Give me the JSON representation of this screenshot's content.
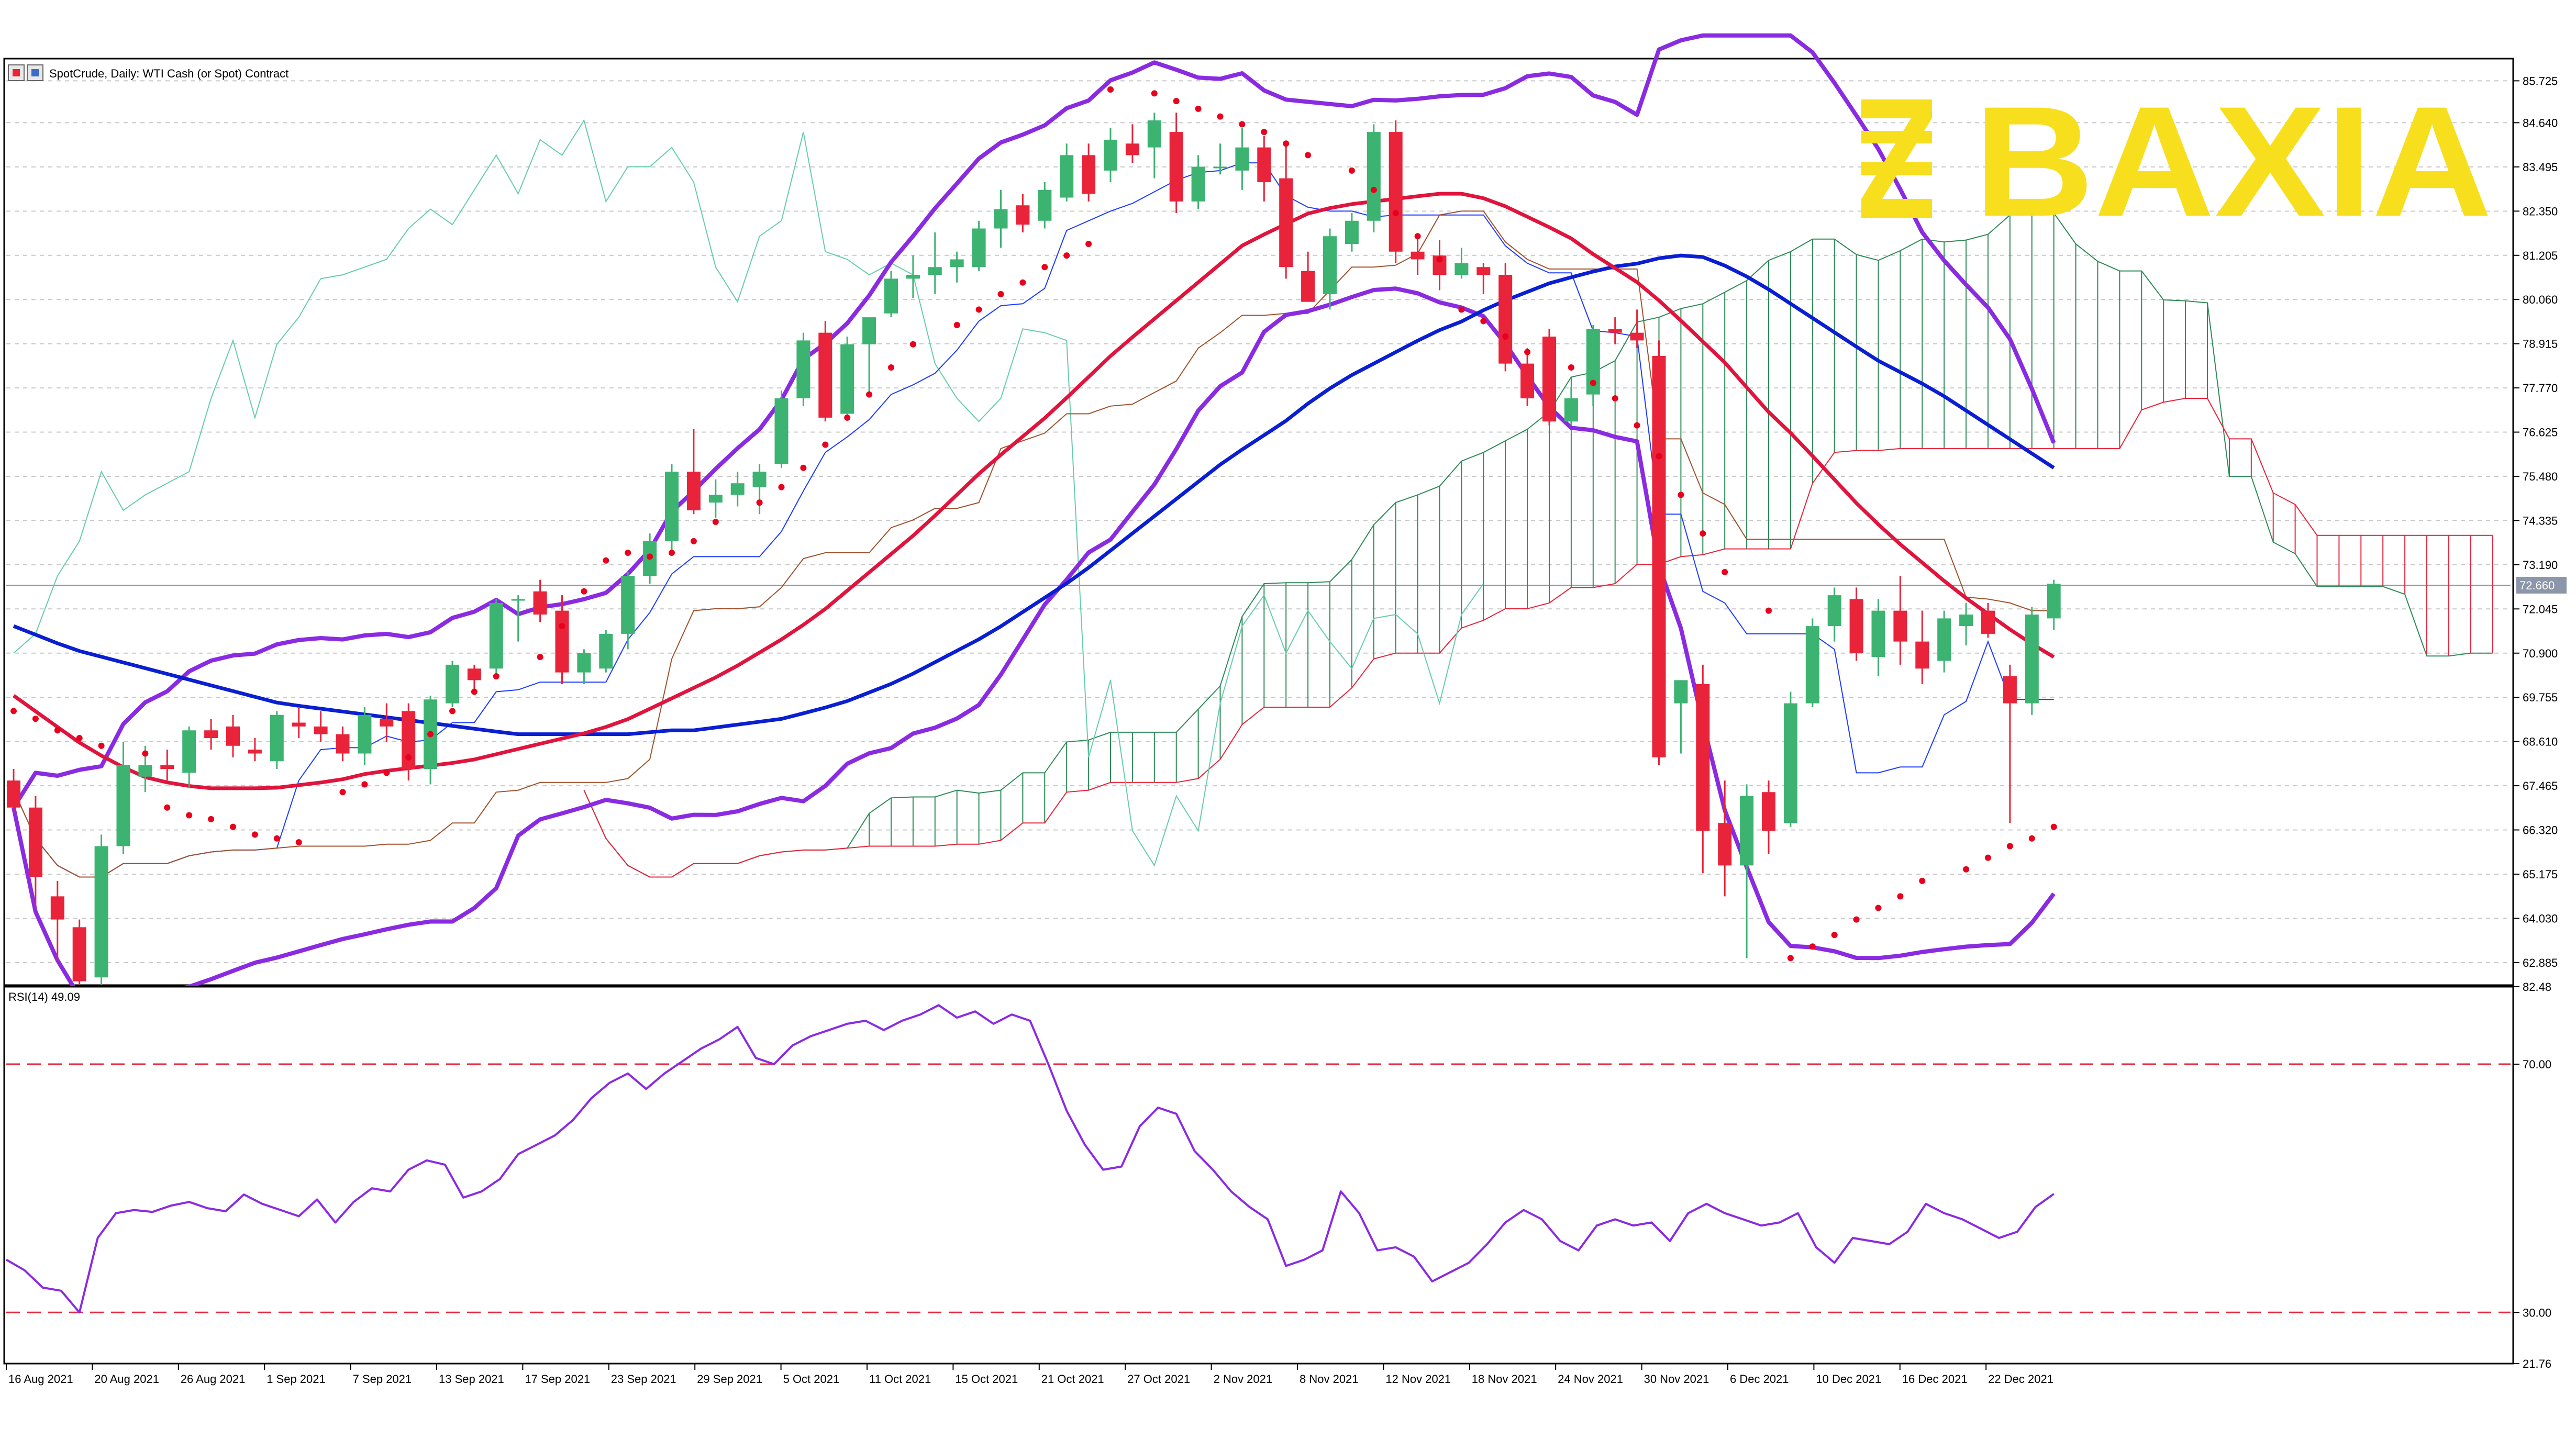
{
  "header": {
    "symbol_line": "SpotCrude, Daily:  WTI Cash (or Spot) Contract"
  },
  "logo": {
    "text": "BAXIA",
    "color": "#f7df1e"
  },
  "colors": {
    "bull": "#3cb371",
    "bear": "#e8233a",
    "sma_short": "#e0143c",
    "sma_long": "#0a1ed2",
    "bollinger": "#8a2be2",
    "ichimoku_tenkan": "#1e3cff",
    "ichimoku_kijun": "#a0522d",
    "chikou": "#66cdaa",
    "cloud_bull": "#2e8b57",
    "cloud_bear": "#e8233a",
    "psar": "#e8001c",
    "rsi": "#8a2be2",
    "rsi_level": "#e8233a",
    "grid": "#c8c8c8"
  },
  "chart_data": [
    {
      "type": "candlestick",
      "title": "SpotCrude, Daily:  WTI Cash (or Spot) Contract",
      "x_tick_labels": [
        "16 Aug 2021",
        "20 Aug 2021",
        "26 Aug 2021",
        "1 Sep 2021",
        "7 Sep 2021",
        "13 Sep 2021",
        "17 Sep 2021",
        "23 Sep 2021",
        "29 Sep 2021",
        "5 Oct 2021",
        "11 Oct 2021",
        "15 Oct 2021",
        "21 Oct 2021",
        "27 Oct 2021",
        "2 Nov 2021",
        "8 Nov 2021",
        "12 Nov 2021",
        "18 Nov 2021",
        "24 Nov 2021",
        "30 Nov 2021",
        "6 Dec 2021",
        "10 Dec 2021",
        "16 Dec 2021",
        "22 Dec 2021"
      ],
      "y_tick_labels": [
        "85.725",
        "84.640",
        "83.495",
        "82.350",
        "81.205",
        "80.060",
        "78.915",
        "77.770",
        "76.625",
        "75.480",
        "74.335",
        "73.190",
        "72.045",
        "70.900",
        "69.755",
        "68.610",
        "67.465",
        "66.320",
        "65.175",
        "64.030",
        "62.885"
      ],
      "current_price_label": "72.660",
      "ylim": [
        62.3,
        86.3
      ],
      "grid": true,
      "candles": [
        {
          "o": 67.6,
          "h": 67.9,
          "l": 66.8,
          "c": 66.9
        },
        {
          "o": 66.9,
          "h": 67.2,
          "l": 64.3,
          "c": 65.1
        },
        {
          "o": 64.6,
          "h": 65.0,
          "l": 62.9,
          "c": 64.0
        },
        {
          "o": 63.8,
          "h": 64.0,
          "l": 62.3,
          "c": 62.4
        },
        {
          "o": 62.5,
          "h": 66.2,
          "l": 62.3,
          "c": 65.9
        },
        {
          "o": 65.9,
          "h": 68.6,
          "l": 65.7,
          "c": 68.0
        },
        {
          "o": 67.7,
          "h": 68.5,
          "l": 67.3,
          "c": 68.0
        },
        {
          "o": 68.0,
          "h": 68.4,
          "l": 67.6,
          "c": 67.9
        },
        {
          "o": 67.8,
          "h": 69.0,
          "l": 67.4,
          "c": 68.9
        },
        {
          "o": 68.9,
          "h": 69.2,
          "l": 68.4,
          "c": 68.7
        },
        {
          "o": 69.0,
          "h": 69.3,
          "l": 68.2,
          "c": 68.5
        },
        {
          "o": 68.4,
          "h": 68.7,
          "l": 68.1,
          "c": 68.3
        },
        {
          "o": 68.1,
          "h": 69.4,
          "l": 67.9,
          "c": 69.3
        },
        {
          "o": 69.1,
          "h": 69.5,
          "l": 68.7,
          "c": 69.0
        },
        {
          "o": 69.0,
          "h": 69.4,
          "l": 68.6,
          "c": 68.8
        },
        {
          "o": 68.8,
          "h": 69.0,
          "l": 68.1,
          "c": 68.3
        },
        {
          "o": 68.3,
          "h": 69.5,
          "l": 68.0,
          "c": 69.3
        },
        {
          "o": 69.2,
          "h": 69.6,
          "l": 68.6,
          "c": 69.0
        },
        {
          "o": 69.4,
          "h": 69.6,
          "l": 67.6,
          "c": 67.9
        },
        {
          "o": 67.9,
          "h": 69.8,
          "l": 67.5,
          "c": 69.7
        },
        {
          "o": 69.6,
          "h": 70.7,
          "l": 69.5,
          "c": 70.6
        },
        {
          "o": 70.5,
          "h": 70.6,
          "l": 69.9,
          "c": 70.2
        },
        {
          "o": 70.5,
          "h": 72.3,
          "l": 70.3,
          "c": 72.2
        },
        {
          "o": 72.3,
          "h": 72.4,
          "l": 71.2,
          "c": 72.3
        },
        {
          "o": 72.5,
          "h": 72.8,
          "l": 71.7,
          "c": 71.9
        },
        {
          "o": 72.0,
          "h": 72.4,
          "l": 70.1,
          "c": 70.4
        },
        {
          "o": 70.4,
          "h": 71.0,
          "l": 70.1,
          "c": 70.9
        },
        {
          "o": 70.5,
          "h": 71.5,
          "l": 70.4,
          "c": 71.4
        },
        {
          "o": 71.4,
          "h": 73.0,
          "l": 71.0,
          "c": 72.9
        },
        {
          "o": 72.9,
          "h": 74.0,
          "l": 72.7,
          "c": 73.8
        },
        {
          "o": 73.8,
          "h": 75.8,
          "l": 73.5,
          "c": 75.6
        },
        {
          "o": 75.6,
          "h": 76.7,
          "l": 74.5,
          "c": 74.6
        },
        {
          "o": 74.8,
          "h": 75.4,
          "l": 74.4,
          "c": 75.0
        },
        {
          "o": 75.0,
          "h": 75.6,
          "l": 74.7,
          "c": 75.3
        },
        {
          "o": 75.2,
          "h": 75.8,
          "l": 74.5,
          "c": 75.6
        },
        {
          "o": 75.8,
          "h": 77.7,
          "l": 75.7,
          "c": 77.5
        },
        {
          "o": 77.5,
          "h": 79.2,
          "l": 77.3,
          "c": 79.0
        },
        {
          "o": 79.2,
          "h": 79.5,
          "l": 76.9,
          "c": 77.0
        },
        {
          "o": 77.1,
          "h": 79.1,
          "l": 77.0,
          "c": 78.9
        },
        {
          "o": 78.9,
          "h": 79.4,
          "l": 77.6,
          "c": 79.6
        },
        {
          "o": 79.7,
          "h": 80.8,
          "l": 79.6,
          "c": 80.6
        },
        {
          "o": 80.6,
          "h": 81.2,
          "l": 80.1,
          "c": 80.7
        },
        {
          "o": 80.7,
          "h": 81.8,
          "l": 80.2,
          "c": 80.9
        },
        {
          "o": 80.9,
          "h": 81.3,
          "l": 80.5,
          "c": 81.1
        },
        {
          "o": 80.9,
          "h": 82.1,
          "l": 80.8,
          "c": 81.9
        },
        {
          "o": 81.9,
          "h": 82.9,
          "l": 81.4,
          "c": 82.4
        },
        {
          "o": 82.5,
          "h": 82.8,
          "l": 81.8,
          "c": 82.0
        },
        {
          "o": 82.1,
          "h": 83.1,
          "l": 81.9,
          "c": 82.9
        },
        {
          "o": 82.7,
          "h": 84.1,
          "l": 82.6,
          "c": 83.8
        },
        {
          "o": 83.8,
          "h": 84.1,
          "l": 82.6,
          "c": 82.8
        },
        {
          "o": 83.4,
          "h": 84.5,
          "l": 83.1,
          "c": 84.2
        },
        {
          "o": 84.1,
          "h": 84.6,
          "l": 83.6,
          "c": 83.8
        },
        {
          "o": 84.0,
          "h": 84.9,
          "l": 83.2,
          "c": 84.7
        },
        {
          "o": 84.4,
          "h": 84.9,
          "l": 82.3,
          "c": 82.6
        },
        {
          "o": 82.6,
          "h": 83.8,
          "l": 82.4,
          "c": 83.5
        },
        {
          "o": 83.5,
          "h": 84.1,
          "l": 83.3,
          "c": 83.5
        },
        {
          "o": 83.4,
          "h": 84.5,
          "l": 82.9,
          "c": 84.0
        },
        {
          "o": 84.0,
          "h": 84.3,
          "l": 82.6,
          "c": 83.1
        },
        {
          "o": 83.2,
          "h": 84.1,
          "l": 80.6,
          "c": 80.9
        },
        {
          "o": 80.8,
          "h": 81.3,
          "l": 80.0,
          "c": 80.0
        },
        {
          "o": 80.2,
          "h": 81.9,
          "l": 79.8,
          "c": 81.7
        },
        {
          "o": 81.5,
          "h": 82.3,
          "l": 81.3,
          "c": 82.1
        },
        {
          "o": 82.1,
          "h": 84.6,
          "l": 81.8,
          "c": 84.4
        },
        {
          "o": 84.4,
          "h": 84.7,
          "l": 81.0,
          "c": 81.3
        },
        {
          "o": 81.3,
          "h": 81.7,
          "l": 80.7,
          "c": 81.1
        },
        {
          "o": 81.2,
          "h": 81.6,
          "l": 80.3,
          "c": 80.7
        },
        {
          "o": 80.7,
          "h": 81.4,
          "l": 80.6,
          "c": 81.0
        },
        {
          "o": 80.9,
          "h": 81.0,
          "l": 80.2,
          "c": 80.7
        },
        {
          "o": 80.7,
          "h": 81.0,
          "l": 78.2,
          "c": 78.4
        },
        {
          "o": 78.4,
          "h": 78.8,
          "l": 77.3,
          "c": 77.5
        },
        {
          "o": 79.1,
          "h": 79.3,
          "l": 76.8,
          "c": 76.9
        },
        {
          "o": 76.9,
          "h": 77.8,
          "l": 76.8,
          "c": 77.5
        },
        {
          "o": 77.6,
          "h": 79.4,
          "l": 77.3,
          "c": 79.3
        },
        {
          "o": 79.3,
          "h": 79.6,
          "l": 78.9,
          "c": 79.2
        },
        {
          "o": 79.2,
          "h": 79.8,
          "l": 78.8,
          "c": 79.0
        },
        {
          "o": 78.6,
          "h": 79.0,
          "l": 68.0,
          "c": 68.2
        },
        {
          "o": 69.6,
          "h": 70.2,
          "l": 68.3,
          "c": 70.2
        },
        {
          "o": 70.1,
          "h": 70.6,
          "l": 65.2,
          "c": 66.3
        },
        {
          "o": 66.5,
          "h": 67.6,
          "l": 64.6,
          "c": 65.4
        },
        {
          "o": 65.4,
          "h": 67.5,
          "l": 63.0,
          "c": 67.2
        },
        {
          "o": 67.3,
          "h": 67.6,
          "l": 65.7,
          "c": 66.3
        },
        {
          "o": 66.5,
          "h": 69.9,
          "l": 66.4,
          "c": 69.6
        },
        {
          "o": 69.6,
          "h": 71.8,
          "l": 69.5,
          "c": 71.6
        },
        {
          "o": 71.6,
          "h": 72.6,
          "l": 71.2,
          "c": 72.4
        },
        {
          "o": 72.3,
          "h": 72.6,
          "l": 70.7,
          "c": 70.9
        },
        {
          "o": 70.8,
          "h": 72.3,
          "l": 70.3,
          "c": 72.0
        },
        {
          "o": 72.0,
          "h": 72.9,
          "l": 70.6,
          "c": 71.2
        },
        {
          "o": 71.2,
          "h": 72.0,
          "l": 70.1,
          "c": 70.5
        },
        {
          "o": 70.7,
          "h": 72.0,
          "l": 70.4,
          "c": 71.8
        },
        {
          "o": 71.6,
          "h": 72.2,
          "l": 71.1,
          "c": 71.9
        },
        {
          "o": 72.0,
          "h": 72.2,
          "l": 71.3,
          "c": 71.4
        },
        {
          "o": 70.3,
          "h": 70.6,
          "l": 66.5,
          "c": 69.6
        },
        {
          "o": 69.6,
          "h": 72.1,
          "l": 69.3,
          "c": 71.9
        },
        {
          "o": 71.8,
          "h": 72.8,
          "l": 71.5,
          "c": 72.7
        }
      ],
      "indicators": {
        "sma_short": [
          69.8,
          69.2,
          68.6,
          68.1,
          67.7,
          67.5,
          67.4,
          67.4,
          67.4,
          67.5,
          67.6,
          67.8,
          67.9,
          68.0,
          68.1,
          68.3,
          68.5,
          68.7,
          68.9,
          69.2,
          69.6,
          70.0,
          70.4,
          70.9,
          71.4,
          72.0,
          72.7,
          73.4,
          74.1,
          74.9,
          75.7,
          76.4,
          77.1,
          77.9,
          78.7,
          79.4,
          80.1,
          80.8,
          81.5,
          81.9,
          82.3,
          82.5,
          82.6,
          82.7,
          82.8,
          82.8,
          82.5,
          82.1,
          81.7,
          81.1,
          80.6,
          79.9,
          79.1,
          78.3,
          77.3,
          76.5,
          75.6,
          74.7,
          73.9,
          73.2,
          72.5,
          71.9,
          71.3,
          70.8
        ],
        "sma_long": [
          71.6,
          71.3,
          71.0,
          70.8,
          70.6,
          70.4,
          70.2,
          70.0,
          69.8,
          69.6,
          69.5,
          69.4,
          69.3,
          69.2,
          69.1,
          69.0,
          68.9,
          68.8,
          68.8,
          68.8,
          68.8,
          68.8,
          68.9,
          68.9,
          69.0,
          69.1,
          69.2,
          69.4,
          69.6,
          69.9,
          70.2,
          70.6,
          71.0,
          71.4,
          71.9,
          72.4,
          72.9,
          73.5,
          74.1,
          74.7,
          75.3,
          75.9,
          76.4,
          76.9,
          77.5,
          78.0,
          78.4,
          78.8,
          79.2,
          79.5,
          79.9,
          80.2,
          80.5,
          80.7,
          80.9,
          81.0,
          81.2,
          81.2,
          80.9,
          80.5,
          80.0,
          79.5,
          79.0,
          78.5,
          78.1,
          77.7,
          77.2,
          76.7,
          76.2,
          75.7
        ],
        "parabolic_sar": [
          69.4,
          69.2,
          68.9,
          68.7,
          68.5,
          68.3,
          66.9,
          66.7,
          66.6,
          66.4,
          66.2,
          66.1,
          66.0,
          67.3,
          67.5,
          67.8,
          68.2,
          68.8,
          69.4,
          69.9,
          70.3,
          70.8,
          71.6,
          72.5,
          73.3,
          73.5,
          73.4,
          73.5,
          73.8,
          74.3,
          74.8,
          75.2,
          75.7,
          76.3,
          77.0,
          77.6,
          78.3,
          78.9,
          79.4,
          79.8,
          80.2,
          80.5,
          80.9,
          81.2,
          81.5,
          85.5,
          85.4,
          85.2,
          85.0,
          84.8,
          84.6,
          84.4,
          84.1,
          83.8,
          83.4,
          82.9,
          82.3,
          81.7,
          81.1,
          79.8,
          79.5,
          79.1,
          78.7,
          78.3,
          77.9,
          77.5,
          76.8,
          76.0,
          75.0,
          74.0,
          73.0,
          72.0,
          63.0,
          63.3,
          63.6,
          64.0,
          64.3,
          64.6,
          65.0,
          65.3,
          65.6,
          65.9,
          66.1,
          66.4
        ],
        "rsi": {
          "label": "RSI(14) 49.09",
          "y_tick_labels": [
            "82.48",
            "70.00",
            "30.00",
            "21.76"
          ],
          "ylim": [
            21.76,
            82.48
          ],
          "levels": [
            70,
            30
          ],
          "values": [
            38.5,
            36.8,
            34.0,
            33.5,
            30.0,
            42.0,
            46.0,
            46.5,
            46.2,
            47.2,
            47.8,
            46.8,
            46.3,
            49.0,
            47.5,
            46.5,
            45.5,
            48.2,
            44.5,
            47.8,
            50.0,
            49.5,
            53.0,
            54.5,
            53.8,
            48.5,
            49.5,
            51.5,
            55.5,
            57.0,
            58.5,
            61.0,
            64.5,
            67.0,
            68.5,
            66.0,
            68.5,
            70.5,
            72.5,
            74.0,
            76.0,
            71.0,
            70.0,
            73.0,
            74.5,
            75.5,
            76.5,
            77.0,
            75.5,
            77.0,
            78.0,
            79.5,
            77.5,
            78.5,
            76.5,
            78.0,
            77.0,
            70.0,
            62.5,
            57.0,
            53.0,
            53.5,
            60.0,
            63.0,
            62.0,
            56.0,
            53.0,
            49.5,
            47.0,
            45.0,
            37.5,
            38.5,
            40.0,
            49.5,
            46.0,
            40.0,
            40.5,
            39.0,
            35.0,
            36.5,
            38.0,
            41.0,
            44.5,
            46.5,
            45.0,
            41.5,
            40.0,
            44.0,
            45.0,
            44.0,
            44.5,
            41.5,
            46.0,
            47.5,
            46.0,
            45.0,
            44.0,
            44.5,
            46.0,
            40.5,
            38.0,
            42.0,
            41.5,
            41.0,
            43.0,
            47.5,
            46.0,
            45.0,
            43.5,
            42.0,
            43.0,
            47.0,
            49.09
          ]
        }
      }
    }
  ]
}
